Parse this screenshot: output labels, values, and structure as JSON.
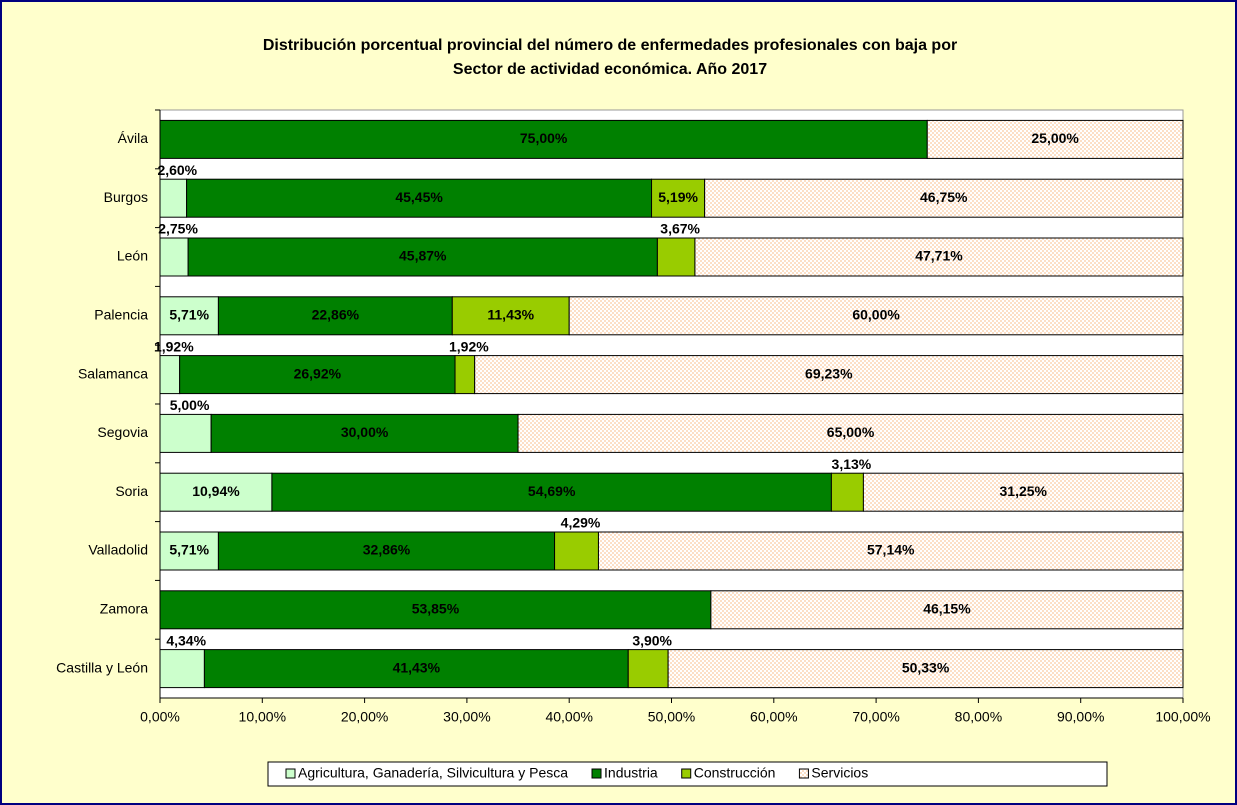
{
  "chart_data": {
    "type": "stacked_bar_horizontal",
    "title": [
      "Distribución porcentual provincial del número de enfermedades profesionales con baja por",
      "Sector de actividad económica. Año 2017"
    ],
    "categories": [
      "Ávila",
      "Burgos",
      "León",
      "Palencia",
      "Salamanca",
      "Segovia",
      "Soria",
      "Valladolid",
      "Zamora",
      "Castilla y León"
    ],
    "series": [
      {
        "name": "Agricultura, Ganadería, Silvicultura y Pesca",
        "color": "#ccffcc",
        "values": [
          0,
          2.6,
          2.75,
          5.71,
          1.92,
          5.0,
          10.94,
          5.71,
          0,
          4.34
        ],
        "value_labels": [
          null,
          "2,60%",
          "2,75%",
          "5,71%",
          "1,92%",
          "5,00%",
          "10,94%",
          "5,71%",
          null,
          "4,34%"
        ]
      },
      {
        "name": "Industria",
        "color": "#008000",
        "values": [
          75.0,
          45.45,
          45.87,
          22.86,
          26.92,
          30.0,
          54.69,
          32.86,
          53.85,
          41.43
        ],
        "value_labels": [
          "75,00%",
          "45,45%",
          "45,87%",
          "22,86%",
          "26,92%",
          "30,00%",
          "54,69%",
          "32,86%",
          "53,85%",
          "41,43%"
        ]
      },
      {
        "name": "Construcción",
        "color": "#99cc00",
        "values": [
          0,
          5.19,
          3.67,
          11.43,
          1.92,
          0,
          3.13,
          4.29,
          0,
          3.9
        ],
        "value_labels": [
          null,
          "5,19%",
          "3,67%",
          "11,43%",
          "1,92%",
          null,
          "3,13%",
          "4,29%",
          null,
          "3,90%"
        ]
      },
      {
        "name": "Servicios",
        "color": "#fcd5b4",
        "values": [
          25.0,
          46.75,
          47.71,
          60.0,
          69.23,
          65.0,
          31.25,
          57.14,
          46.15,
          50.33
        ],
        "value_labels": [
          "25,00%",
          "46,75%",
          "47,71%",
          "60,00%",
          "69,23%",
          "65,00%",
          "31,25%",
          "57,14%",
          "46,15%",
          "50,33%"
        ]
      }
    ],
    "xlim": [
      0,
      100
    ],
    "xticks": [
      {
        "value": 0,
        "label": "0,00%"
      },
      {
        "value": 10,
        "label": "10,00%"
      },
      {
        "value": 20,
        "label": "20,00%"
      },
      {
        "value": 30,
        "label": "30,00%"
      },
      {
        "value": 40,
        "label": "40,00%"
      },
      {
        "value": 50,
        "label": "50,00%"
      },
      {
        "value": 60,
        "label": "60,00%"
      },
      {
        "value": 70,
        "label": "70,00%"
      },
      {
        "value": 80,
        "label": "80,00%"
      },
      {
        "value": 90,
        "label": "90,00%"
      },
      {
        "value": 100,
        "label": "100,00%"
      }
    ],
    "legend": "bottom"
  }
}
